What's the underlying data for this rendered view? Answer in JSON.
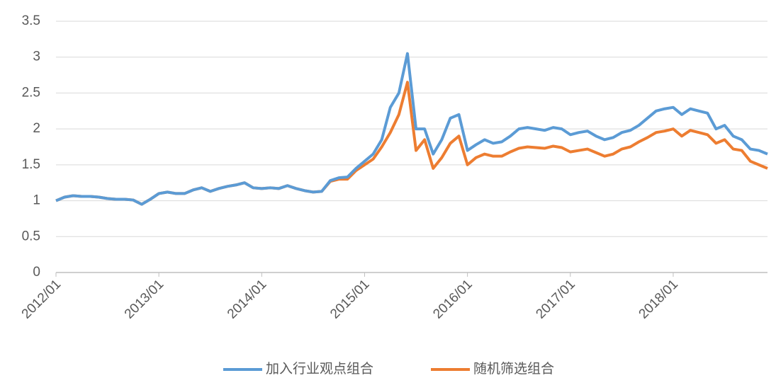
{
  "chart_data": {
    "type": "line",
    "x": [
      "2012/01",
      "2012/02",
      "2012/03",
      "2012/04",
      "2012/05",
      "2012/06",
      "2012/07",
      "2012/08",
      "2012/09",
      "2012/10",
      "2012/11",
      "2012/12",
      "2013/01",
      "2013/02",
      "2013/03",
      "2013/04",
      "2013/05",
      "2013/06",
      "2013/07",
      "2013/08",
      "2013/09",
      "2013/10",
      "2013/11",
      "2013/12",
      "2014/01",
      "2014/02",
      "2014/03",
      "2014/04",
      "2014/05",
      "2014/06",
      "2014/07",
      "2014/08",
      "2014/09",
      "2014/10",
      "2014/11",
      "2014/12",
      "2015/01",
      "2015/02",
      "2015/03",
      "2015/04",
      "2015/05",
      "2015/06",
      "2015/07",
      "2015/08",
      "2015/09",
      "2015/10",
      "2015/11",
      "2015/12",
      "2016/01",
      "2016/02",
      "2016/03",
      "2016/04",
      "2016/05",
      "2016/06",
      "2016/07",
      "2016/08",
      "2016/09",
      "2016/10",
      "2016/11",
      "2016/12",
      "2017/01",
      "2017/02",
      "2017/03",
      "2017/04",
      "2017/05",
      "2017/06",
      "2017/07",
      "2017/08",
      "2017/09",
      "2017/10",
      "2017/11",
      "2017/12",
      "2018/01",
      "2018/02",
      "2018/03",
      "2018/04",
      "2018/05",
      "2018/06",
      "2018/07",
      "2018/08",
      "2018/09",
      "2018/10",
      "2018/11",
      "2018/12"
    ],
    "series": [
      {
        "name": "加入行业观点组合",
        "color": "#5b9bd5",
        "values": [
          1.0,
          1.05,
          1.07,
          1.06,
          1.06,
          1.05,
          1.03,
          1.02,
          1.02,
          1.01,
          0.95,
          1.02,
          1.1,
          1.12,
          1.1,
          1.1,
          1.15,
          1.18,
          1.13,
          1.17,
          1.2,
          1.22,
          1.25,
          1.18,
          1.17,
          1.18,
          1.17,
          1.21,
          1.17,
          1.14,
          1.12,
          1.13,
          1.28,
          1.32,
          1.33,
          1.45,
          1.55,
          1.65,
          1.85,
          2.3,
          2.5,
          3.05,
          2.0,
          2.0,
          1.65,
          1.85,
          2.15,
          2.2,
          1.7,
          1.78,
          1.85,
          1.8,
          1.82,
          1.9,
          2.0,
          2.02,
          2.0,
          1.98,
          2.02,
          2.0,
          1.92,
          1.95,
          1.97,
          1.9,
          1.85,
          1.88,
          1.95,
          1.98,
          2.05,
          2.15,
          2.25,
          2.28,
          2.3,
          2.2,
          2.28,
          2.25,
          2.22,
          2.0,
          2.05,
          1.9,
          1.85,
          1.72,
          1.7,
          1.65
        ]
      },
      {
        "name": "随机筛选组合",
        "color": "#ed7d31",
        "values": [
          1.0,
          1.05,
          1.07,
          1.06,
          1.06,
          1.05,
          1.03,
          1.02,
          1.02,
          1.01,
          0.95,
          1.02,
          1.1,
          1.12,
          1.1,
          1.1,
          1.15,
          1.18,
          1.13,
          1.17,
          1.2,
          1.22,
          1.25,
          1.18,
          1.17,
          1.18,
          1.17,
          1.21,
          1.17,
          1.14,
          1.12,
          1.13,
          1.27,
          1.3,
          1.3,
          1.42,
          1.5,
          1.58,
          1.75,
          1.95,
          2.2,
          2.65,
          1.7,
          1.85,
          1.45,
          1.6,
          1.8,
          1.9,
          1.5,
          1.6,
          1.65,
          1.62,
          1.62,
          1.68,
          1.73,
          1.75,
          1.74,
          1.73,
          1.76,
          1.74,
          1.68,
          1.7,
          1.72,
          1.67,
          1.62,
          1.65,
          1.72,
          1.75,
          1.82,
          1.88,
          1.95,
          1.97,
          2.0,
          1.9,
          1.98,
          1.95,
          1.92,
          1.8,
          1.85,
          1.72,
          1.7,
          1.55,
          1.5,
          1.45
        ]
      }
    ],
    "xticks": [
      "2012/01",
      "2013/01",
      "2014/01",
      "2015/01",
      "2016/01",
      "2017/01",
      "2018/01"
    ],
    "ylim": [
      0,
      3.5
    ],
    "yticks": [
      0,
      0.5,
      1,
      1.5,
      2,
      2.5,
      3,
      3.5
    ],
    "grid": true,
    "legend": "bottom"
  }
}
